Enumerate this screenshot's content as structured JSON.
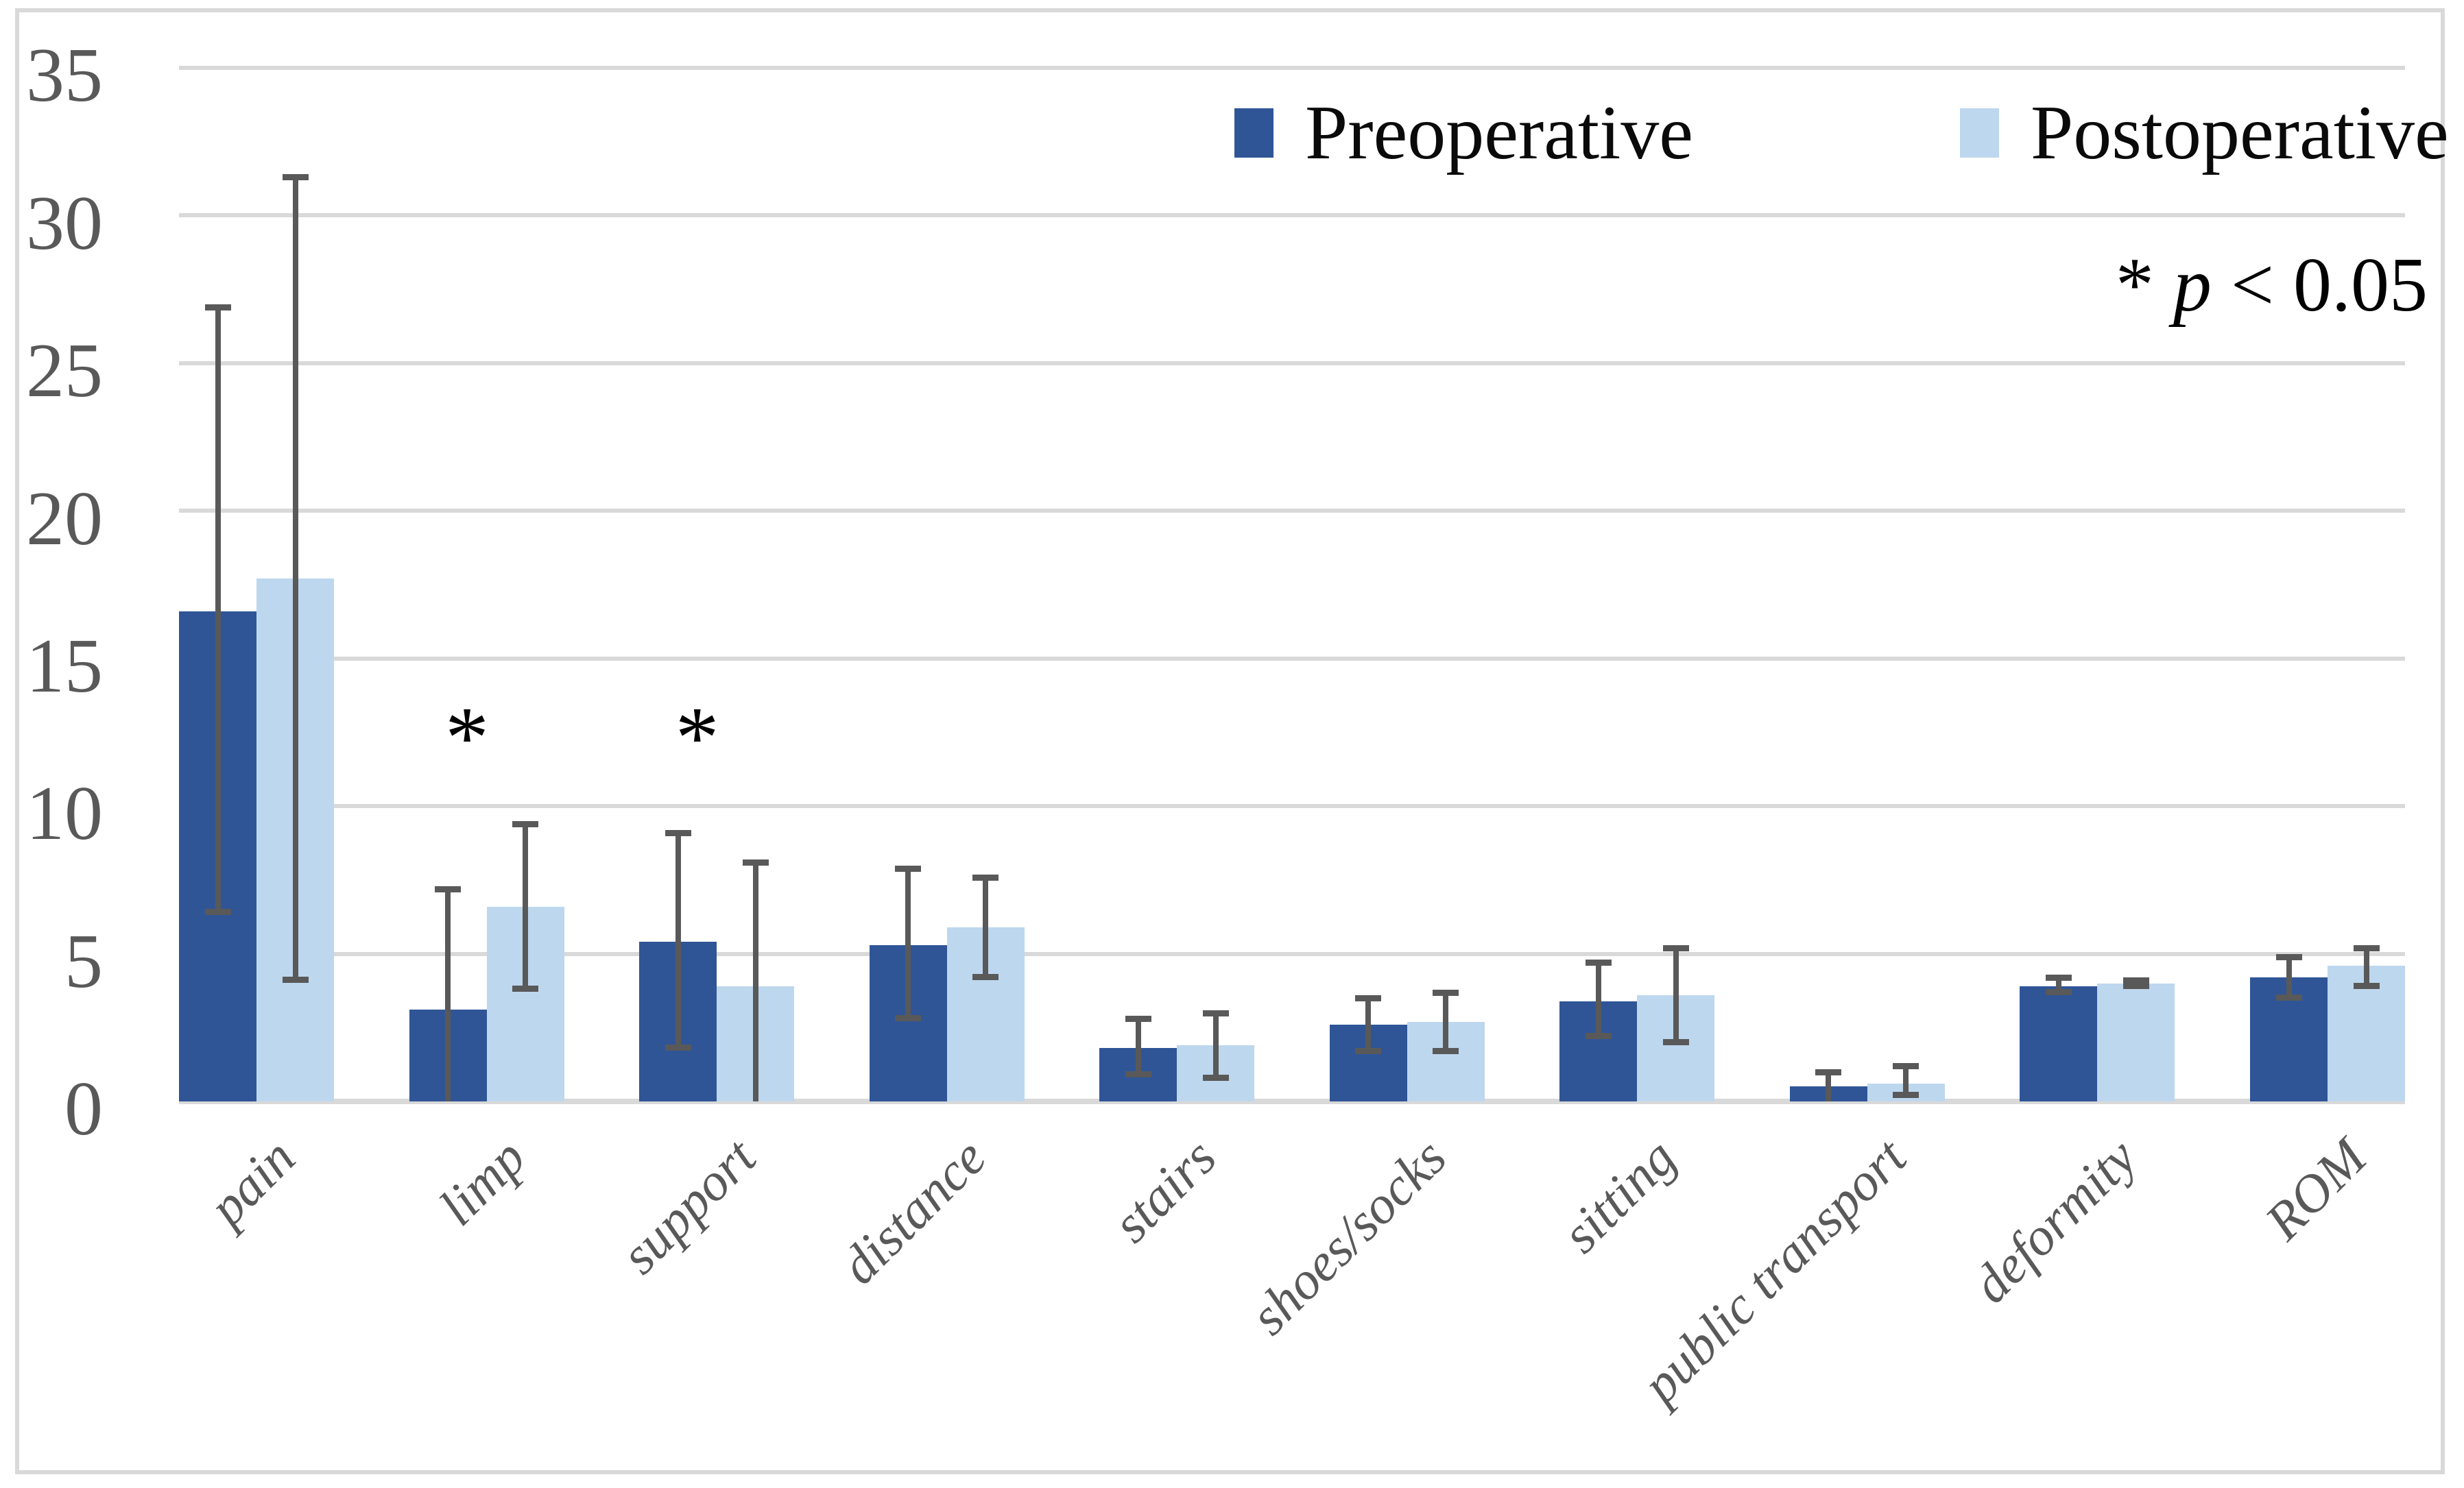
{
  "chart_data": {
    "type": "bar",
    "title": "",
    "categories": [
      "pain",
      "limp",
      "support",
      "distance",
      "stairs",
      "shoes/socks",
      "sitting",
      "public transport",
      "deformity",
      "ROM"
    ],
    "series": [
      {
        "name": "Preoperative",
        "color": "#2F5597",
        "values": [
          16.6,
          3.1,
          5.4,
          5.3,
          1.8,
          2.6,
          3.4,
          0.5,
          3.9,
          4.2
        ],
        "error_high": [
          26.9,
          7.2,
          9.1,
          7.9,
          2.8,
          3.5,
          4.7,
          1.0,
          4.2,
          4.9
        ],
        "error_low": [
          6.4,
          null,
          1.8,
          2.8,
          0.9,
          1.7,
          2.2,
          null,
          3.7,
          3.5
        ]
      },
      {
        "name": "Postoperative",
        "color": "#BDD7EE",
        "values": [
          17.7,
          6.6,
          3.9,
          5.9,
          1.9,
          2.7,
          3.6,
          0.6,
          4.0,
          4.6
        ],
        "error_high": [
          31.3,
          9.4,
          8.1,
          7.6,
          3.0,
          3.7,
          5.2,
          1.2,
          4.1,
          5.2
        ],
        "error_low": [
          4.1,
          3.8,
          null,
          4.2,
          0.8,
          1.7,
          2.0,
          0.2,
          3.9,
          3.9
        ]
      }
    ],
    "error_bar_color": "#595959",
    "gridline_color": "#D9D9D9",
    "axis_label_color": "#595959",
    "significant_categories": [
      "limp",
      "support"
    ],
    "significance_marker": "*",
    "annotation": "* p < 0.05",
    "y_ticks": [
      0,
      5,
      10,
      15,
      20,
      25,
      30,
      35
    ],
    "ylim": [
      0,
      35
    ],
    "grid": true,
    "legend_position": "top-right"
  },
  "legend": {
    "items": [
      {
        "label": "Preoperative"
      },
      {
        "label": "Postoperative"
      }
    ]
  },
  "note": {
    "star": "* ",
    "p_symbol": "p",
    "rest": " < 0.05"
  }
}
